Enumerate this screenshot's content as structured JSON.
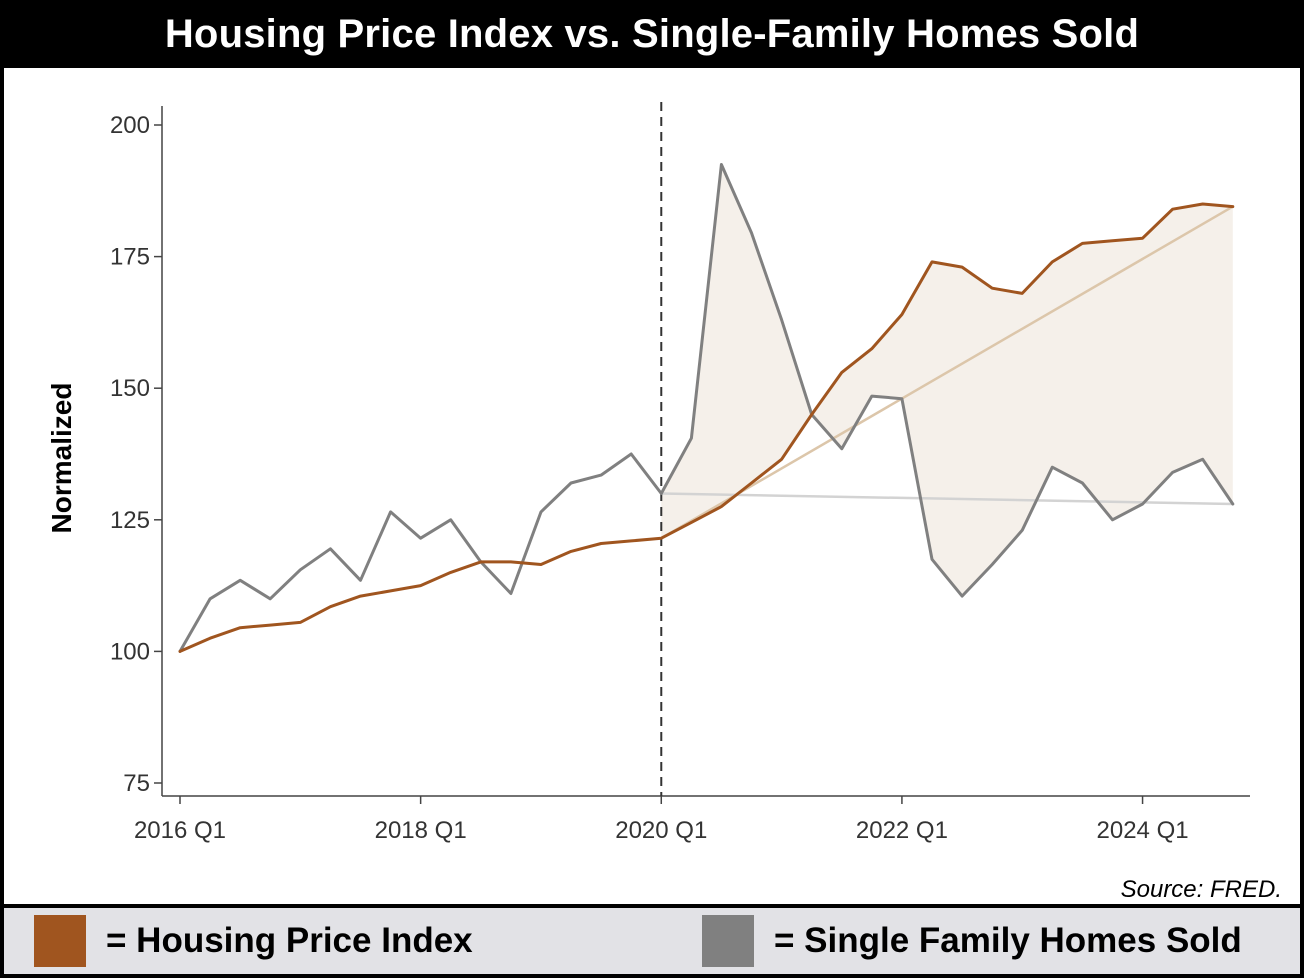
{
  "title": "Housing Price Index vs. Single-Family Homes Sold",
  "source": "Source: FRED.",
  "legend": {
    "hpi_label": "= Housing Price Index",
    "homes_label": "= Single Family Homes Sold"
  },
  "colors": {
    "hpi": "#a0551f",
    "homes": "#808080",
    "fill": "#f5f0ea",
    "trend_hpi": "#dcc6aa",
    "trend_homes": "#d3d3d3"
  },
  "chart_data": {
    "type": "line",
    "title": "Housing Price Index vs. Single-Family Homes Sold",
    "xlabel": "",
    "ylabel": "Normalized",
    "ylim": [
      75,
      200
    ],
    "yticks": [
      75,
      100,
      125,
      150,
      175,
      200
    ],
    "xticks": [
      {
        "label": "2016 Q1",
        "index": 0
      },
      {
        "label": "2018 Q1",
        "index": 8
      },
      {
        "label": "2020 Q1",
        "index": 16
      },
      {
        "label": "2022 Q1",
        "index": 24
      },
      {
        "label": "2024 Q1",
        "index": 32
      }
    ],
    "vline_index": 16,
    "x": [
      "2016 Q1",
      "2016 Q2",
      "2016 Q3",
      "2016 Q4",
      "2017 Q1",
      "2017 Q2",
      "2017 Q3",
      "2017 Q4",
      "2018 Q1",
      "2018 Q2",
      "2018 Q3",
      "2018 Q4",
      "2019 Q1",
      "2019 Q2",
      "2019 Q3",
      "2019 Q4",
      "2020 Q1",
      "2020 Q2",
      "2020 Q3",
      "2020 Q4",
      "2021 Q1",
      "2021 Q2",
      "2021 Q3",
      "2021 Q4",
      "2022 Q1",
      "2022 Q2",
      "2022 Q3",
      "2022 Q4",
      "2023 Q1",
      "2023 Q2",
      "2023 Q3",
      "2023 Q4",
      "2024 Q1",
      "2024 Q2",
      "2024 Q3",
      "2024 Q4"
    ],
    "series": [
      {
        "name": "Housing Price Index",
        "values": [
          100,
          102.5,
          104.5,
          105,
          105.5,
          108.5,
          110.5,
          111.5,
          112.5,
          115,
          117,
          117,
          116.5,
          119,
          120.5,
          121,
          121.5,
          124.5,
          127.5,
          132,
          136.5,
          145,
          153,
          157.5,
          164,
          174,
          173,
          169,
          168,
          174,
          177.5,
          178,
          178.5,
          184,
          185,
          184.5
        ]
      },
      {
        "name": "Single Family Homes Sold",
        "values": [
          100,
          110,
          113.5,
          110,
          115.5,
          119.5,
          113.5,
          126.5,
          121.5,
          125,
          117,
          111,
          126.5,
          132,
          133.5,
          137.5,
          130,
          140.5,
          192.5,
          179.5,
          163,
          145,
          138.5,
          148.5,
          148,
          117.5,
          110.5,
          116.5,
          123,
          135,
          132,
          125,
          128,
          134,
          136.5,
          128
        ]
      }
    ],
    "trend_lines": [
      {
        "name": "Housing Price Index trend",
        "from_index": 16,
        "to_index": 35,
        "from_value": 121.5,
        "to_value": 184.5
      },
      {
        "name": "Single Family Homes Sold trend",
        "from_index": 16,
        "to_index": 35,
        "from_value": 130,
        "to_value": 128
      }
    ]
  }
}
